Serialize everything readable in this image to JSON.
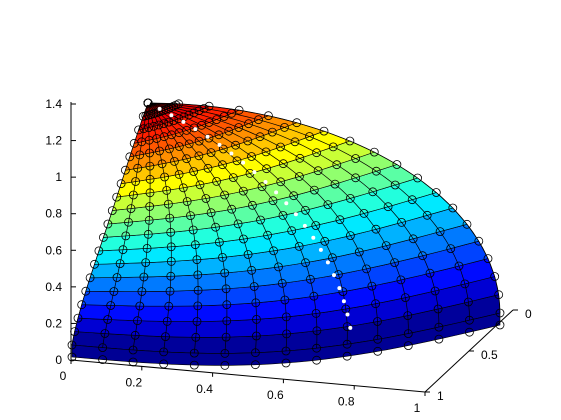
{
  "chart_data": {
    "type": "surface",
    "title": "",
    "xlabel": "",
    "ylabel": "",
    "zlabel": "",
    "grid": false,
    "surface": "spherical patch (octant of a sphere, radius ~1.4) rendered with jet colormap, colored by height",
    "z_ticks": [
      "0",
      "0.2",
      "0.4",
      "0.6",
      "0.8",
      "1",
      "1.2",
      "1.4"
    ],
    "x_ticks": [
      "0",
      "0.2",
      "0.4",
      "0.6",
      "0.8",
      "1"
    ],
    "y_ticks": [
      "0",
      "0.5",
      "1"
    ],
    "zlim": [
      0,
      1.4
    ],
    "xlim": [
      0,
      1
    ],
    "ylim": [
      0,
      1
    ],
    "n_bands": 18,
    "n_meridians": 14,
    "colormap": "jet",
    "markers": "open circles at mesh nodes",
    "dotted_path": "white dotted curve from apex toward front bottom"
  },
  "colors": {
    "mesh": "#000000",
    "markers": "#000000",
    "path": "#ffffff"
  }
}
